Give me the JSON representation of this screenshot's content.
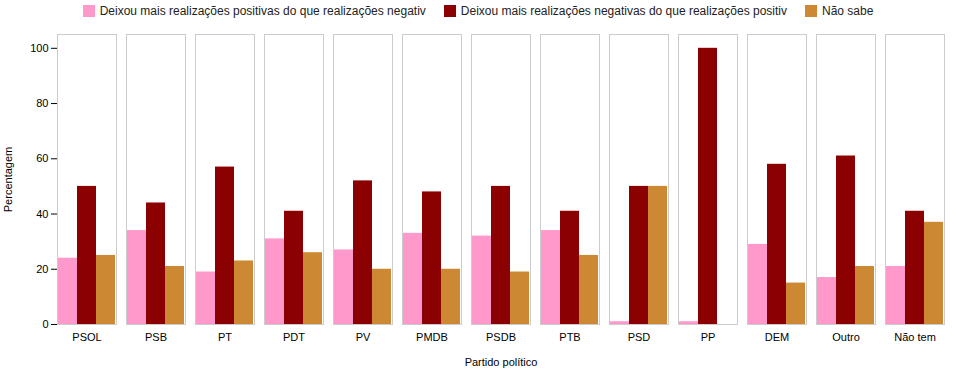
{
  "chart_data": {
    "type": "bar",
    "categories": [
      "PSOL",
      "PSB",
      "PT",
      "PDT",
      "PV",
      "PMDB",
      "PSDB",
      "PTB",
      "PSD",
      "PP",
      "DEM",
      "Outro",
      "Não tem"
    ],
    "series": [
      {
        "name": "Deixou mais realizações positivas do que realizações negativ",
        "color": "#FF99CC",
        "values": [
          24,
          34,
          19,
          31,
          27,
          33,
          32,
          34,
          1,
          1,
          29,
          17,
          21
        ]
      },
      {
        "name": "Deixou mais realizações negativas do que realizações positiv",
        "color": "#8B0000",
        "values": [
          50,
          44,
          57,
          41,
          52,
          48,
          50,
          41,
          50,
          100,
          58,
          61,
          41
        ]
      },
      {
        "name": "Não sabe",
        "color": "#CC8833",
        "values": [
          25,
          21,
          23,
          26,
          20,
          20,
          19,
          25,
          50,
          0,
          15,
          21,
          37
        ]
      }
    ],
    "xlabel": "Partido político",
    "ylabel": "Percentagem",
    "ylim": [
      0,
      105
    ],
    "yticks": [
      0,
      20,
      40,
      60,
      80,
      100
    ],
    "grid": false,
    "legend": "top"
  }
}
